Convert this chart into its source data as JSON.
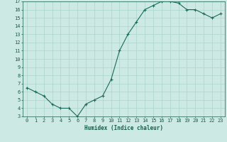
{
  "x": [
    0,
    1,
    2,
    3,
    4,
    5,
    6,
    7,
    8,
    9,
    10,
    11,
    12,
    13,
    14,
    15,
    16,
    17,
    18,
    19,
    20,
    21,
    22,
    23
  ],
  "y": [
    6.5,
    6.0,
    5.5,
    4.5,
    4.0,
    4.0,
    3.0,
    4.5,
    5.0,
    5.5,
    7.5,
    11.0,
    13.0,
    14.5,
    16.0,
    16.5,
    17.0,
    17.0,
    16.8,
    16.0,
    16.0,
    15.5,
    15.0,
    15.5
  ],
  "xlabel": "Humidex (Indice chaleur)",
  "xlim": [
    -0.5,
    23.5
  ],
  "ylim": [
    3,
    17
  ],
  "yticks": [
    3,
    4,
    5,
    6,
    7,
    8,
    9,
    10,
    11,
    12,
    13,
    14,
    15,
    16,
    17
  ],
  "xticks": [
    0,
    1,
    2,
    3,
    4,
    5,
    6,
    7,
    8,
    9,
    10,
    11,
    12,
    13,
    14,
    15,
    16,
    17,
    18,
    19,
    20,
    21,
    22,
    23
  ],
  "line_color": "#1a6b5a",
  "marker": "+",
  "bg_color": "#cceae3",
  "grid_color": "#aad4cc",
  "label_color": "#1a5c4a"
}
